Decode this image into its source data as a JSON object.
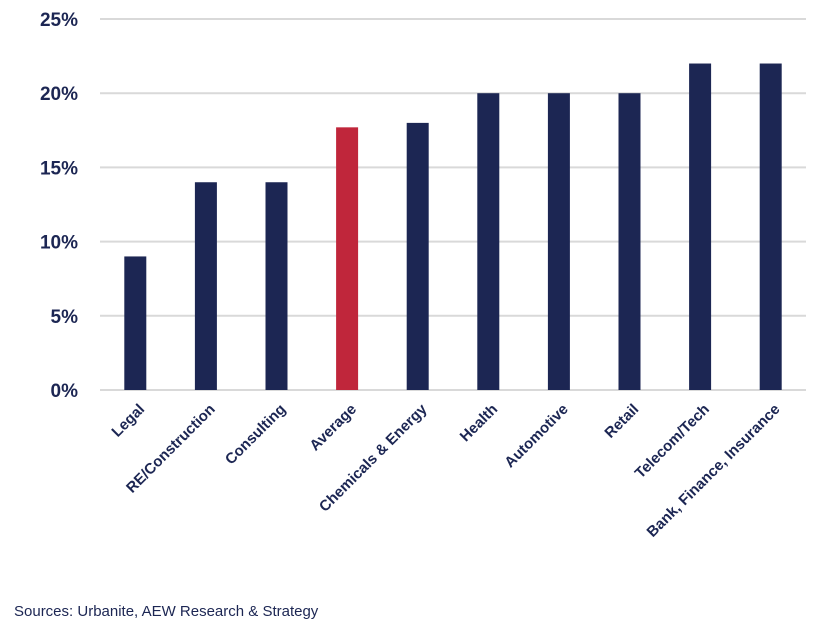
{
  "chart_data": {
    "type": "bar",
    "categories": [
      "Legal",
      "RE/Construction",
      "Consulting",
      "Average",
      "Chemicals & Energy",
      "Health",
      "Automotive",
      "Retail",
      "Telecom/Tech",
      "Bank, Finance, Insurance"
    ],
    "values": [
      9,
      14,
      14,
      17.7,
      18,
      20,
      20,
      20,
      22,
      22
    ],
    "highlight": "Average",
    "title": "",
    "xlabel": "",
    "ylabel": "",
    "ylim": [
      0,
      25
    ],
    "yticks": [
      0,
      5,
      10,
      15,
      20,
      25
    ],
    "ytick_labels": [
      "0%",
      "5%",
      "10%",
      "15%",
      "20%",
      "25%"
    ],
    "grid": true,
    "colors": {
      "bar": "#1c2653",
      "highlight": "#c0263b",
      "grid": "#d9d9d9",
      "text": "#1c2653"
    }
  },
  "source": "Sources: Urbanite, AEW Research & Strategy"
}
